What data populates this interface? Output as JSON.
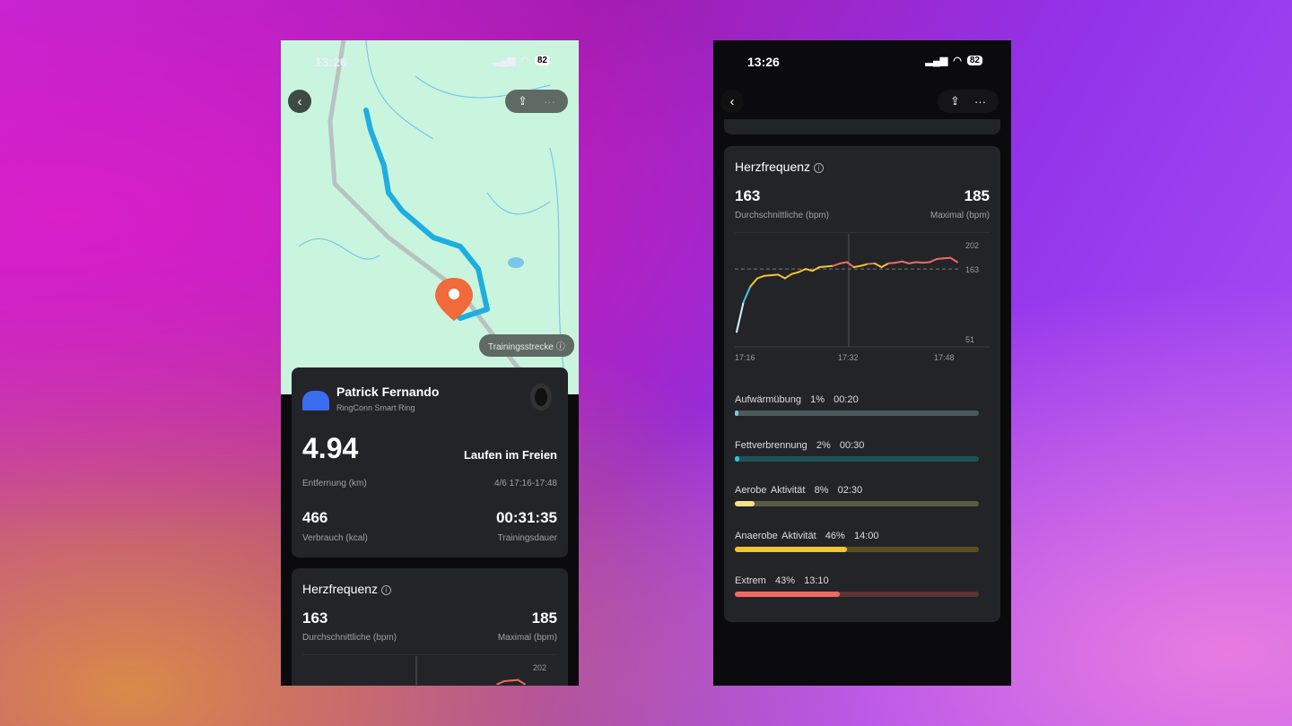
{
  "status": {
    "time": "13:26",
    "battery": "82"
  },
  "left": {
    "map": {
      "chip": "Trainingsstrecke",
      "colors": {
        "land": "#c9f5df",
        "route": "#1eaee0",
        "pin": "#f06a3a"
      }
    },
    "profile": {
      "name": "Patrick Fernando",
      "device": "RingConn Smart Ring"
    },
    "summary": {
      "distance": "4.94",
      "distance_label": "Entfernung (km)",
      "activity": "Laufen im Freien",
      "date": "4/6 17:16-17:48",
      "calories": "466",
      "calories_label": "Verbrauch (kcal)",
      "duration": "00:31:35",
      "duration_label": "Trainingsdauer"
    }
  },
  "hr": {
    "title": "Herzfrequenz",
    "avg": "163",
    "avg_label": "Durchschnittliche (bpm)",
    "max": "185",
    "max_label": "Maximal (bpm)"
  },
  "chart_data": {
    "type": "line",
    "x_ticks": [
      "17:16",
      "17:32",
      "17:48"
    ],
    "y_ticks": [
      "202",
      "163",
      "51"
    ],
    "ylim": [
      51,
      202
    ],
    "reference_line": 163,
    "x": [
      "17:16",
      "17:17",
      "17:18",
      "17:19",
      "17:20",
      "17:21",
      "17:22",
      "17:23",
      "17:24",
      "17:25",
      "17:26",
      "17:27",
      "17:28",
      "17:29",
      "17:30",
      "17:31",
      "17:32",
      "17:33",
      "17:34",
      "17:35",
      "17:36",
      "17:37",
      "17:38",
      "17:39",
      "17:40",
      "17:41",
      "17:42",
      "17:43",
      "17:44",
      "17:45",
      "17:46",
      "17:47",
      "17:48"
    ],
    "values": [
      62,
      110,
      135,
      148,
      152,
      153,
      154,
      148,
      155,
      158,
      163,
      160,
      166,
      167,
      168,
      172,
      174,
      166,
      168,
      171,
      172,
      166,
      172,
      173,
      175,
      172,
      174,
      173,
      174,
      179,
      180,
      181,
      174
    ]
  },
  "zones": [
    {
      "name": "Aufwärmübung",
      "pct": "1%",
      "time": "00:20",
      "value": 1,
      "fill": "#7fc7d8",
      "track": "#4a5a5c"
    },
    {
      "name": "Fettverbrennung",
      "pct": "2%",
      "time": "00:30",
      "value": 2,
      "fill": "#2fc6d8",
      "track": "#1f5257"
    },
    {
      "name": "Aerobe Aktivität",
      "pct": "8%",
      "time": "02:30",
      "value": 8,
      "fill": "#f7e08a",
      "track": "#5b5a46"
    },
    {
      "name": "Anaerobe Aktivität",
      "pct": "46%",
      "time": "14:00",
      "value": 46,
      "fill": "#f2c530",
      "track": "#5d5020"
    },
    {
      "name": "Extrem",
      "pct": "43%",
      "time": "13:10",
      "value": 43,
      "fill": "#ee6a63",
      "track": "#5a3533"
    }
  ]
}
